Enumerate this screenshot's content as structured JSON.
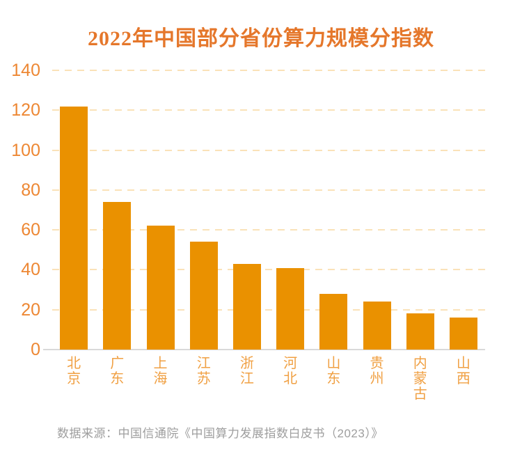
{
  "title": "2022年中国部分省份算力规模分指数",
  "source_note": "数据来源：中国信通院《中国算力发展指数白皮书（2023）》",
  "colors": {
    "background": "#FFFFFF",
    "title": "#E5772B",
    "bar": "#EA9100",
    "y_tick_label": "#ED8733",
    "x_tick_label": "#F0A043",
    "gridline": "#FAE2B8",
    "axis_line": "#D9D9D9",
    "source_text": "#9E9E9E"
  },
  "chart_data": {
    "type": "bar",
    "title": "2022年中国部分省份算力规模分指数",
    "categories": [
      "北京",
      "广东",
      "上海",
      "江苏",
      "浙江",
      "河北",
      "山东",
      "贵州",
      "内蒙古",
      "山西"
    ],
    "values": [
      122,
      74,
      62,
      54,
      43,
      41,
      28,
      24,
      18,
      16
    ],
    "xlabel": "",
    "ylabel": "",
    "ylim": [
      0,
      140
    ],
    "yticks": [
      0,
      20,
      40,
      60,
      80,
      100,
      120,
      140
    ],
    "grid": "horizontal-dashed",
    "legend": "none",
    "bar_orientation": "vertical",
    "x_tick_text_direction": "vertical",
    "source": "数据来源：中国信通院《中国算力发展指数白皮书（2023）》"
  }
}
